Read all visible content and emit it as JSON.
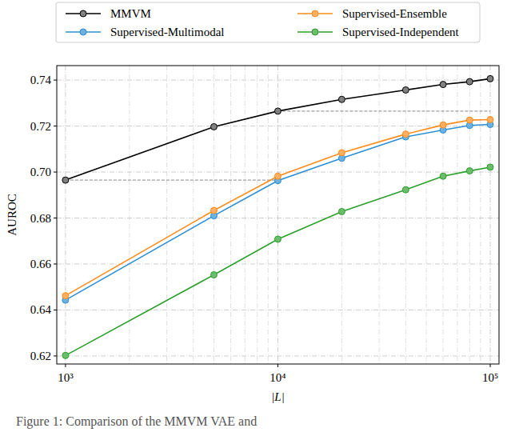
{
  "chart_data": {
    "type": "line",
    "x_label": "|L|",
    "y_label": "AUROC",
    "caption": "Figure 1: Comparison of the MMVM VAE and",
    "log": "x",
    "grid": true,
    "legend": "top",
    "marker": "circle",
    "x": [
      1000,
      5000,
      10000,
      20000,
      40000,
      60000,
      80000,
      100000
    ],
    "xlim": [
      910,
      110000
    ],
    "xticks": [
      {
        "value": 1000,
        "label": "10³"
      },
      {
        "value": 10000,
        "label": "10⁴"
      },
      {
        "value": 100000,
        "label": "10⁵"
      }
    ],
    "ylim": [
      0.6165,
      0.7463
    ],
    "yticks": [
      0.62,
      0.64,
      0.66,
      0.68,
      {
        "value": 0.7,
        "label": "0.70"
      },
      0.72,
      0.74
    ],
    "series": [
      {
        "name": "MMVM",
        "color": "#000000",
        "values": [
          0.6965,
          0.7197,
          0.7265,
          0.7316,
          0.7357,
          0.7381,
          0.7393,
          0.7406
        ]
      },
      {
        "name": "Supervised-Multimodal",
        "color": "#2b8fd6",
        "values": [
          0.6443,
          0.681,
          0.6963,
          0.706,
          0.7153,
          0.7183,
          0.7203,
          0.7207
        ]
      },
      {
        "name": "Supervised-Ensemble",
        "color": "#ff8c1a",
        "values": [
          0.6462,
          0.6833,
          0.6982,
          0.7084,
          0.7165,
          0.7205,
          0.7226,
          0.7228
        ]
      },
      {
        "name": "Supervised-Independent",
        "color": "#2ca02c",
        "values": [
          0.6202,
          0.6553,
          0.6708,
          0.6828,
          0.6923,
          0.6982,
          0.7005,
          0.7021
        ]
      }
    ],
    "reference_lines": [
      {
        "y": 0.6965,
        "x": [
          1000,
          10000
        ]
      },
      {
        "y": 0.7265,
        "x": [
          10000,
          100000
        ]
      }
    ]
  }
}
